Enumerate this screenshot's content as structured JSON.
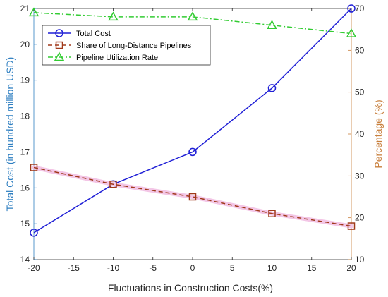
{
  "chart_data": {
    "type": "line",
    "title": "",
    "xlabel": "Fluctuations in Construction Costs(%)",
    "ylabel_left": "Total Cost (in hundred million USD)",
    "ylabel_right": "Percentage (%)",
    "x": [
      -20,
      -10,
      0,
      10,
      20
    ],
    "xlim": [
      -20,
      20
    ],
    "xticks": [
      -20,
      -15,
      -10,
      -5,
      0,
      5,
      10,
      15,
      20
    ],
    "ylim_left": [
      14,
      21
    ],
    "yticks_left": [
      14,
      15,
      16,
      17,
      18,
      19,
      20,
      21
    ],
    "ylim_right": [
      10,
      70
    ],
    "yticks_right": [
      10,
      20,
      30,
      40,
      50,
      60,
      70
    ],
    "legend_position": "top-left",
    "grid": false,
    "series": [
      {
        "name": "Total Cost",
        "axis": "left",
        "values": [
          14.75,
          16.1,
          17.0,
          18.78,
          21.0
        ],
        "color": "#1f1fd6",
        "marker": "circle",
        "line_style": "solid"
      },
      {
        "name": "Share of Long-Distance Pipelines",
        "axis": "right",
        "values": [
          32,
          28,
          25,
          21,
          18
        ],
        "color": "#a0391a",
        "marker": "square",
        "line_style": "dashed"
      },
      {
        "name": "Pipeline Utilization Rate",
        "axis": "right",
        "values": [
          69,
          68,
          68,
          66,
          64
        ],
        "color": "#33cc33",
        "marker": "triangle",
        "line_style": "dashdot"
      }
    ],
    "left_axis_color": "#2f7fc1",
    "right_axis_color": "#c87f3c"
  }
}
